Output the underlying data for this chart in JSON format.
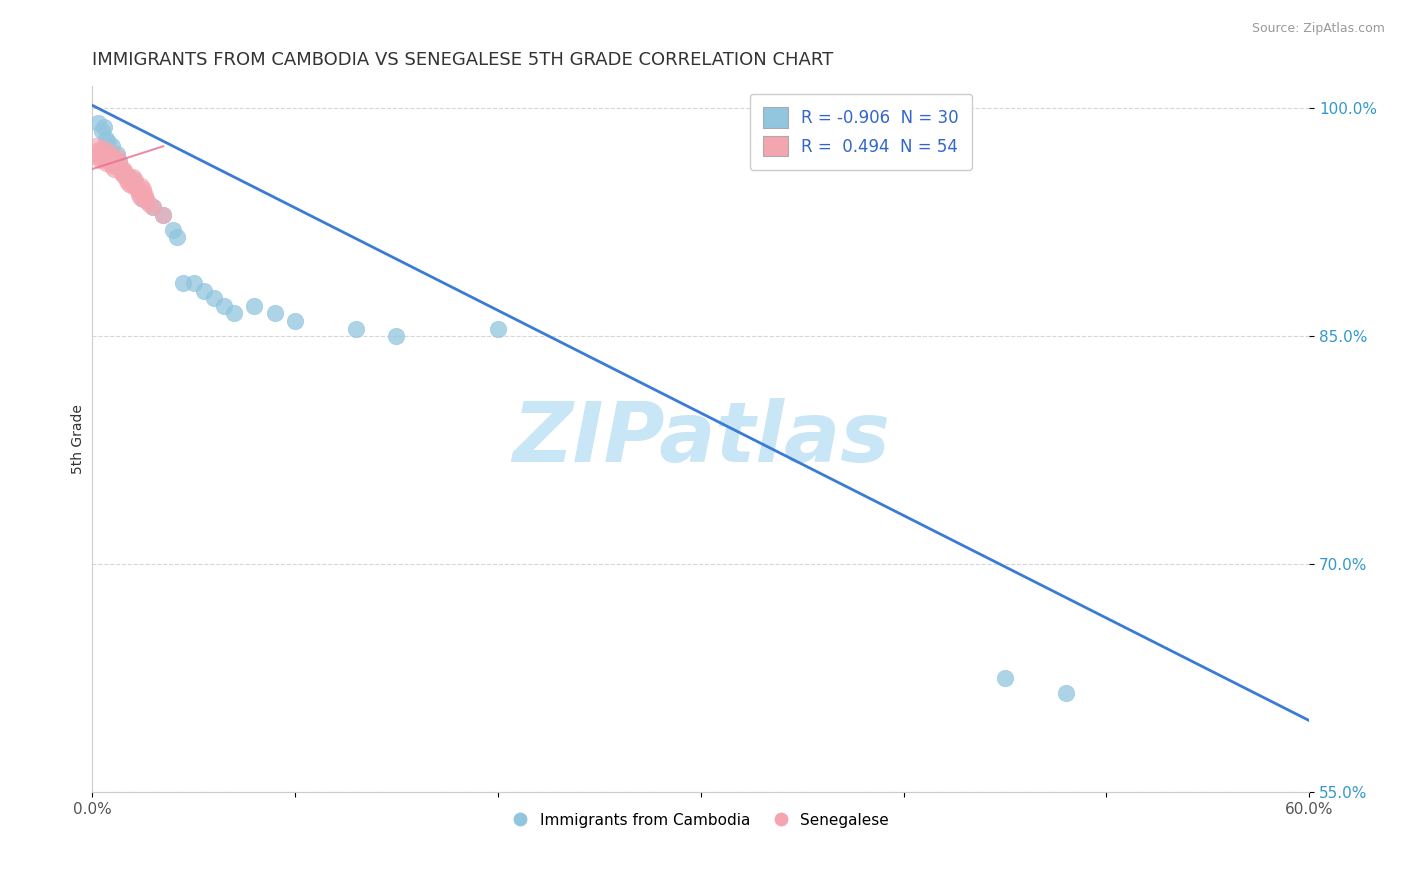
{
  "title": "IMMIGRANTS FROM CAMBODIA VS SENEGALESE 5TH GRADE CORRELATION CHART",
  "source": "Source: ZipAtlas.com",
  "xlabel": "",
  "ylabel": "5th Grade",
  "xlim": [
    0.0,
    0.6
  ],
  "ylim": [
    0.575,
    1.015
  ],
  "xticks": [
    0.0,
    0.1,
    0.2,
    0.3,
    0.4,
    0.5,
    0.6
  ],
  "xticklabels": [
    "0.0%",
    "",
    "",
    "",
    "",
    "",
    "60.0%"
  ],
  "yticks": [
    0.55,
    0.7,
    0.85,
    1.0
  ],
  "yticklabels": [
    "55.0%",
    "70.0%",
    "85.0%",
    "100.0%"
  ],
  "legend_labels": [
    "Immigrants from Cambodia",
    "Senegalese"
  ],
  "legend_r": [
    "-0.906",
    "0.494"
  ],
  "legend_n": [
    "30",
    "54"
  ],
  "blue_color": "#92C5DE",
  "pink_color": "#F4A6B0",
  "line_color": "#3A7BD5",
  "pink_line_color": "#E87090",
  "watermark": "ZIPatlas",
  "watermark_color": "#C8E6F5",
  "background_color": "#FFFFFF",
  "grid_color": "#CCCCCC",
  "title_color": "#333333",
  "blue_scatter_x": [
    0.003,
    0.005,
    0.006,
    0.007,
    0.008,
    0.01,
    0.012,
    0.013,
    0.015,
    0.018,
    0.02,
    0.025,
    0.03,
    0.035,
    0.04,
    0.042,
    0.045,
    0.05,
    0.055,
    0.06,
    0.065,
    0.07,
    0.08,
    0.09,
    0.1,
    0.13,
    0.15,
    0.2,
    0.45,
    0.48
  ],
  "blue_scatter_y": [
    0.99,
    0.985,
    0.988,
    0.98,
    0.978,
    0.975,
    0.97,
    0.965,
    0.958,
    0.955,
    0.952,
    0.94,
    0.935,
    0.93,
    0.92,
    0.915,
    0.885,
    0.885,
    0.88,
    0.875,
    0.87,
    0.865,
    0.87,
    0.865,
    0.86,
    0.855,
    0.85,
    0.855,
    0.625,
    0.615
  ],
  "pink_scatter_x": [
    0.002,
    0.002,
    0.003,
    0.003,
    0.004,
    0.004,
    0.005,
    0.005,
    0.006,
    0.006,
    0.007,
    0.007,
    0.008,
    0.008,
    0.009,
    0.009,
    0.01,
    0.01,
    0.011,
    0.011,
    0.012,
    0.012,
    0.013,
    0.013,
    0.014,
    0.014,
    0.015,
    0.015,
    0.016,
    0.016,
    0.017,
    0.017,
    0.018,
    0.018,
    0.019,
    0.019,
    0.02,
    0.02,
    0.021,
    0.021,
    0.022,
    0.022,
    0.023,
    0.023,
    0.024,
    0.024,
    0.025,
    0.025,
    0.026,
    0.026,
    0.027,
    0.028,
    0.03,
    0.035
  ],
  "pink_scatter_y": [
    0.975,
    0.972,
    0.97,
    0.968,
    0.966,
    0.968,
    0.974,
    0.972,
    0.97,
    0.968,
    0.966,
    0.964,
    0.972,
    0.97,
    0.968,
    0.966,
    0.964,
    0.962,
    0.96,
    0.963,
    0.968,
    0.966,
    0.964,
    0.962,
    0.96,
    0.958,
    0.956,
    0.96,
    0.958,
    0.956,
    0.954,
    0.952,
    0.95,
    0.955,
    0.953,
    0.951,
    0.949,
    0.955,
    0.953,
    0.951,
    0.949,
    0.947,
    0.945,
    0.943,
    0.941,
    0.949,
    0.947,
    0.945,
    0.943,
    0.941,
    0.939,
    0.937,
    0.935,
    0.93
  ],
  "blue_line_x": [
    0.0,
    0.6
  ],
  "blue_line_y": [
    1.002,
    0.597
  ],
  "pink_line_x": [
    0.0,
    0.035
  ],
  "pink_line_y": [
    0.96,
    0.975
  ],
  "title_fontsize": 13,
  "axis_label_fontsize": 10,
  "tick_fontsize": 11,
  "legend_fontsize": 12
}
